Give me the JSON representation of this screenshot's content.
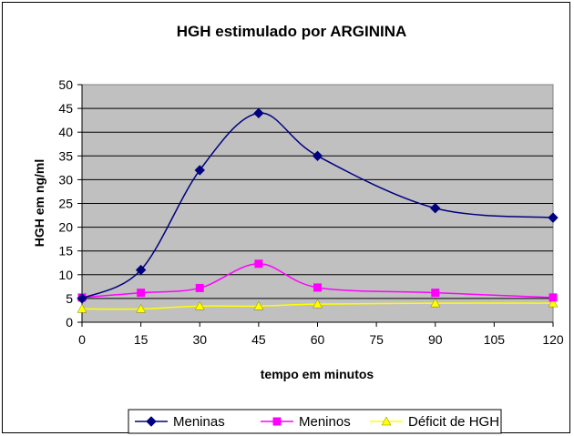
{
  "chart_data": {
    "type": "line",
    "title": "HGH estimulado por ARGININA",
    "xlabel": "tempo em minutos",
    "ylabel": "HGH em ng/ml",
    "x": [
      0,
      15,
      30,
      45,
      60,
      90,
      120
    ],
    "x_ticks": [
      "0",
      "15",
      "30",
      "45",
      "60",
      "75",
      "90",
      "105",
      "120"
    ],
    "y_ticks": [
      "0",
      "5",
      "10",
      "15",
      "20",
      "25",
      "30",
      "35",
      "40",
      "45",
      "50"
    ],
    "xlim": [
      0,
      120
    ],
    "ylim": [
      0,
      50
    ],
    "grid": true,
    "plot_background": "#c0c0c0",
    "legend_position": "bottom",
    "series": [
      {
        "name": "Meninas",
        "values": [
          5,
          11,
          32,
          44,
          35,
          24,
          22
        ],
        "color": "#000080",
        "marker": "diamond"
      },
      {
        "name": "Meninos",
        "values": [
          5.2,
          6.2,
          7.2,
          12.3,
          7.3,
          6.2,
          5.2
        ],
        "color": "#ff00ff",
        "marker": "square"
      },
      {
        "name": "Déficit de HGH",
        "values": [
          2.8,
          2.8,
          3.4,
          3.4,
          3.8,
          4.0,
          4.0
        ],
        "color": "#ffff00",
        "marker": "triangle"
      }
    ]
  }
}
